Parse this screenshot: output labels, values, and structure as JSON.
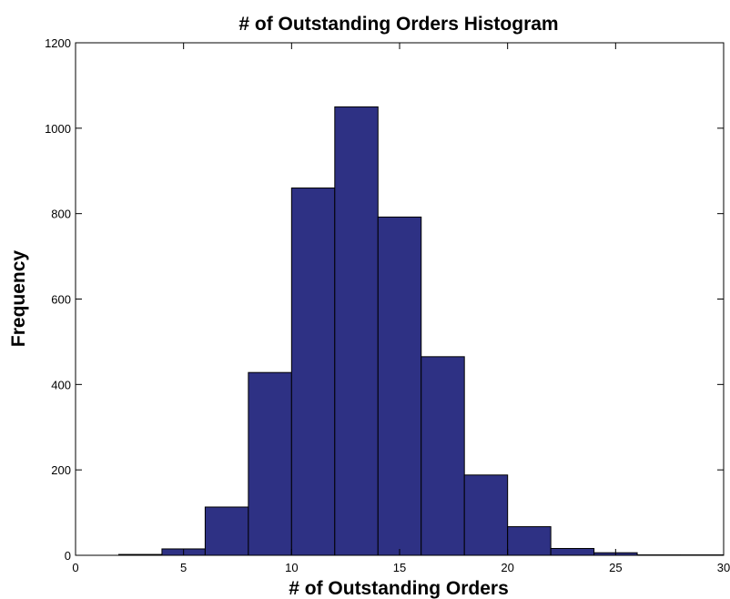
{
  "chart_data": {
    "type": "bar",
    "title": "# of Outstanding Orders Histogram",
    "xlabel": "# of Outstanding Orders",
    "ylabel": "Frequency",
    "xlim": [
      0,
      30
    ],
    "ylim": [
      0,
      1200
    ],
    "xticks": [
      0,
      5,
      10,
      15,
      20,
      25,
      30
    ],
    "yticks": [
      0,
      200,
      400,
      600,
      800,
      1000,
      1200
    ],
    "bin_edges": [
      2,
      4,
      6,
      8,
      10,
      12,
      14,
      16,
      18,
      20,
      22,
      24,
      26,
      28,
      30
    ],
    "values": [
      2,
      15,
      113,
      428,
      860,
      1050,
      792,
      465,
      188,
      67,
      16,
      6,
      1,
      1
    ],
    "grid": false,
    "bar_color": "#2e3184",
    "edge_color": "#000000"
  }
}
